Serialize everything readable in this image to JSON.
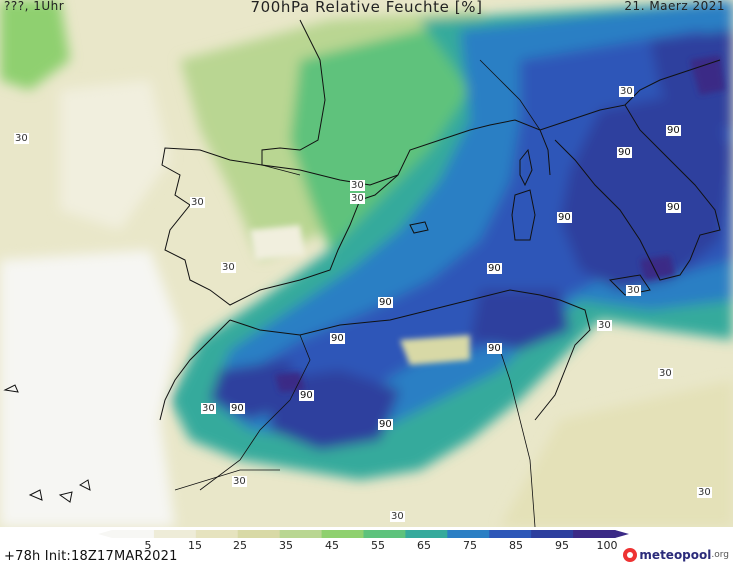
{
  "header": {
    "left": "???, 1Uhr",
    "title": "700hPa Relative Feuchte [%]",
    "right": "21. Maerz 2021"
  },
  "footer": {
    "run_info": "+78h  Init:18Z17MAR2021"
  },
  "logo": {
    "name": "meteopool",
    "suffix": ".org"
  },
  "colorbar": {
    "tick_labels": [
      "5",
      "15",
      "25",
      "35",
      "45",
      "55",
      "65",
      "75",
      "85",
      "95",
      "100"
    ],
    "colors": [
      "#f7f7f4",
      "#eeecd8",
      "#e6e3bf",
      "#d8d9a6",
      "#b9d692",
      "#8fd06f",
      "#5ec27c",
      "#36aa9c",
      "#2b7fc4",
      "#2d57b8",
      "#2d3f9e",
      "#3b2a86"
    ]
  },
  "contour_labels": [
    {
      "text": "30",
      "tone": "light"
    },
    {
      "text": "30",
      "tone": "light"
    },
    {
      "text": "30",
      "tone": "light"
    },
    {
      "text": "30",
      "tone": "light"
    },
    {
      "text": "30",
      "tone": "light"
    },
    {
      "text": "30",
      "tone": "light"
    },
    {
      "text": "30",
      "tone": "light"
    },
    {
      "text": "30",
      "tone": "light"
    },
    {
      "text": "30",
      "tone": "light"
    },
    {
      "text": "30",
      "tone": "light"
    },
    {
      "text": "30",
      "tone": "light"
    },
    {
      "text": "30",
      "tone": "light"
    },
    {
      "text": "30",
      "tone": "light"
    },
    {
      "text": "30",
      "tone": "light"
    },
    {
      "text": "90",
      "tone": "dark"
    },
    {
      "text": "90",
      "tone": "dark"
    },
    {
      "text": "90",
      "tone": "dark"
    },
    {
      "text": "90",
      "tone": "dark"
    },
    {
      "text": "90",
      "tone": "dark"
    },
    {
      "text": "90",
      "tone": "dark"
    },
    {
      "text": "90",
      "tone": "dark"
    },
    {
      "text": "90",
      "tone": "dark"
    },
    {
      "text": "90",
      "tone": "dark"
    },
    {
      "text": "90",
      "tone": "dark"
    }
  ]
}
